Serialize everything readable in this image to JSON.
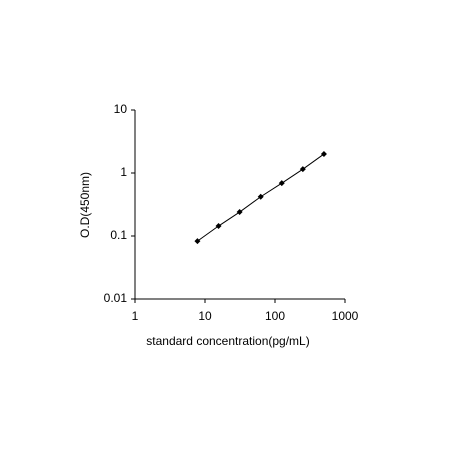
{
  "chart_data": {
    "type": "line",
    "x_label": "standard concentration(pg/mL)",
    "y_label": "O.D(450nm)",
    "x": [
      7.8,
      15.6,
      31.25,
      62.5,
      125,
      250,
      500
    ],
    "series": [
      {
        "color": "#000000",
        "values": [
          0.083,
          0.144,
          0.24,
          0.42,
          0.69,
          1.15,
          2.0
        ]
      }
    ],
    "xlim": [
      1,
      1000
    ],
    "xticks": [
      1,
      10,
      100,
      1000
    ],
    "ylim": [
      0.01,
      10
    ],
    "yticks": [
      0.01,
      0.1,
      1,
      10
    ],
    "log_x": true,
    "log_y": true,
    "grid": false
  }
}
